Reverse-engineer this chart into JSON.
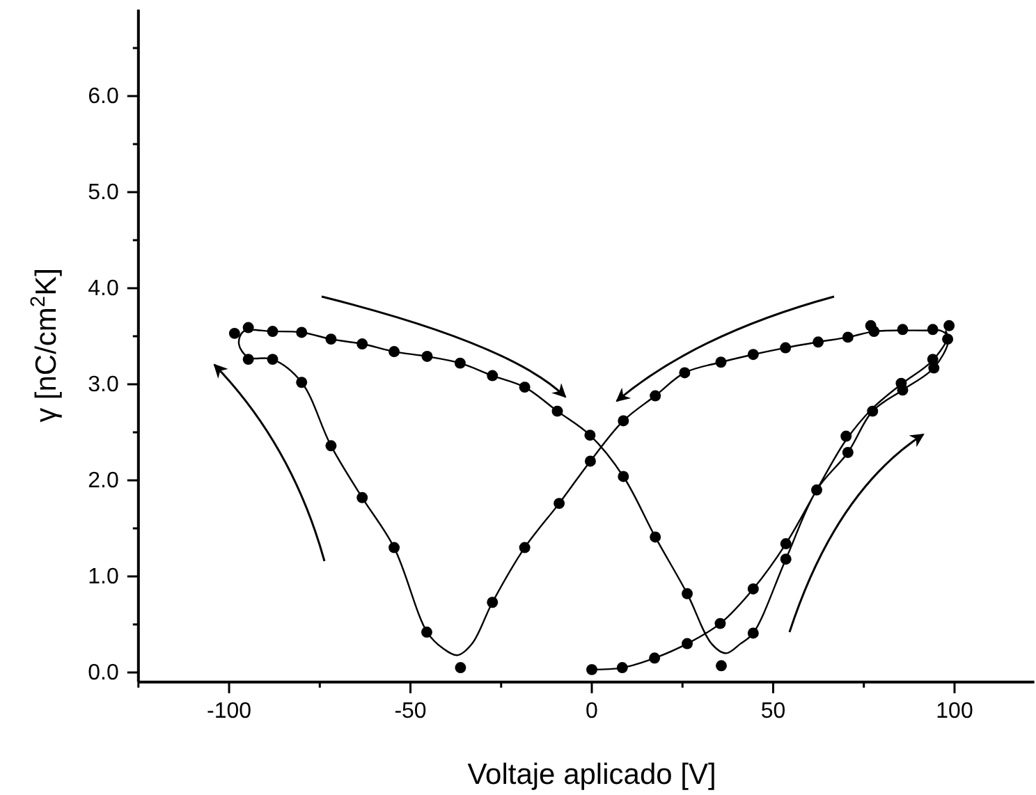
{
  "chart_data": {
    "type": "scatter",
    "xlabel": "Voltaje aplicado [V]",
    "ylabel": "γ [nC/cm$^{2}$K]",
    "xlim": [
      -125,
      122
    ],
    "ylim": [
      -0.1,
      6.9
    ],
    "xticks": [
      {
        "value": -125,
        "label": null
      },
      -100,
      {
        "value": -75,
        "label": null
      },
      -50,
      {
        "value": -25,
        "label": null
      },
      0,
      {
        "value": 25,
        "label": null
      },
      50,
      {
        "value": 75,
        "label": null
      },
      100
    ],
    "yticks": [
      {
        "value": 0,
        "label": "0.0"
      },
      {
        "value": 0.5,
        "label": null
      },
      {
        "value": 1,
        "label": "1.0"
      },
      {
        "value": 1.5,
        "label": null
      },
      {
        "value": 2,
        "label": "2.0"
      },
      {
        "value": 2.5,
        "label": null
      },
      {
        "value": 3,
        "label": "3.0"
      },
      {
        "value": 3.5,
        "label": null
      },
      {
        "value": 4,
        "label": "4.0"
      },
      {
        "value": 4.5,
        "label": null
      },
      {
        "value": 5,
        "label": "5.0"
      },
      {
        "value": 5.5,
        "label": null
      },
      {
        "value": 6,
        "label": "6.0"
      },
      {
        "value": 6.5,
        "label": null
      }
    ],
    "grid": false,
    "series": [
      {
        "marker": "circle",
        "color": "#000000",
        "x": [
          -98.5,
          -94.7,
          -88,
          -80,
          -71.9,
          -63.3,
          -54.5,
          -45.4,
          -36.3,
          -27.4,
          -18.5,
          -9.5,
          -0.5,
          8.7,
          17.5,
          26.3,
          35.7,
          44.5,
          53.5,
          0,
          8.4,
          17.3,
          26.3,
          35.4,
          44.5,
          53.5,
          62,
          70.1,
          70.6,
          77.4,
          85.3,
          85.7,
          94,
          94.3,
          98.1,
          98.5,
          94,
          85.7,
          77.8,
          76.9,
          70.6,
          62.4,
          53.4,
          44.5,
          35.6,
          25.6,
          17.5,
          8.7,
          -0.4,
          -9,
          -18.5,
          -27.4,
          -36.2,
          -45.5,
          -54.5,
          -63.3,
          -71.9,
          -80,
          -88,
          -94.7
        ],
        "values": [
          3.53,
          3.59,
          3.55,
          3.54,
          3.47,
          3.42,
          3.34,
          3.29,
          3.22,
          3.09,
          2.97,
          2.72,
          2.47,
          2.04,
          1.41,
          0.82,
          0.07,
          0.41,
          1.18,
          0.03,
          0.05,
          0.15,
          0.3,
          0.51,
          0.87,
          1.34,
          1.9,
          2.46,
          2.29,
          2.72,
          3.01,
          2.94,
          3.26,
          3.17,
          3.47,
          3.61,
          3.57,
          3.57,
          3.55,
          3.61,
          3.49,
          3.44,
          3.38,
          3.31,
          3.23,
          3.12,
          2.88,
          2.62,
          2.2,
          1.76,
          1.3,
          0.73,
          0.05,
          0.42,
          1.3,
          1.82,
          2.36,
          3.02,
          3.26,
          3.26
        ]
      },
      {
        "type": "line",
        "marker": "none",
        "line_style": "solid",
        "color": "#000000",
        "x": [
          0,
          8.4,
          17.3,
          26.3,
          35.4,
          44.5,
          53.5,
          62,
          70.1,
          77.4,
          85.3,
          94,
          98,
          96,
          94,
          85.7,
          77.8,
          70.6,
          62.4,
          53.4,
          44.5,
          35.6,
          25.6,
          17.5,
          8.7,
          -0.4,
          -9,
          -18.5,
          -27.4,
          -33,
          -37,
          -41,
          -45.4,
          -54.5,
          -63.3,
          -71.9,
          -80,
          -88,
          -94.7,
          -97.3,
          -96,
          -88,
          -80,
          -71.9,
          -63.3,
          -54.5,
          -45.4,
          -36.3,
          -27.4,
          -18.5,
          -9.5,
          -0.5,
          8.7,
          17.5,
          26.3,
          33,
          37,
          41,
          44.5,
          53.5,
          62,
          70.6,
          77.4,
          85.7,
          94.3,
          98.3,
          97.5
        ],
        "values": [
          0.03,
          0.05,
          0.15,
          0.3,
          0.51,
          0.87,
          1.34,
          1.9,
          2.42,
          2.75,
          3.0,
          3.25,
          3.5,
          3.56,
          3.56,
          3.56,
          3.55,
          3.49,
          3.44,
          3.38,
          3.31,
          3.23,
          3.12,
          2.88,
          2.62,
          2.2,
          1.76,
          1.3,
          0.73,
          0.3,
          0.18,
          0.25,
          0.42,
          1.3,
          1.82,
          2.36,
          3.02,
          3.26,
          3.28,
          3.42,
          3.55,
          3.55,
          3.54,
          3.47,
          3.42,
          3.34,
          3.29,
          3.22,
          3.09,
          2.97,
          2.72,
          2.47,
          2.04,
          1.41,
          0.82,
          0.3,
          0.2,
          0.3,
          0.41,
          1.18,
          1.9,
          2.29,
          2.72,
          2.94,
          3.17,
          3.45,
          3.56
        ]
      }
    ]
  }
}
